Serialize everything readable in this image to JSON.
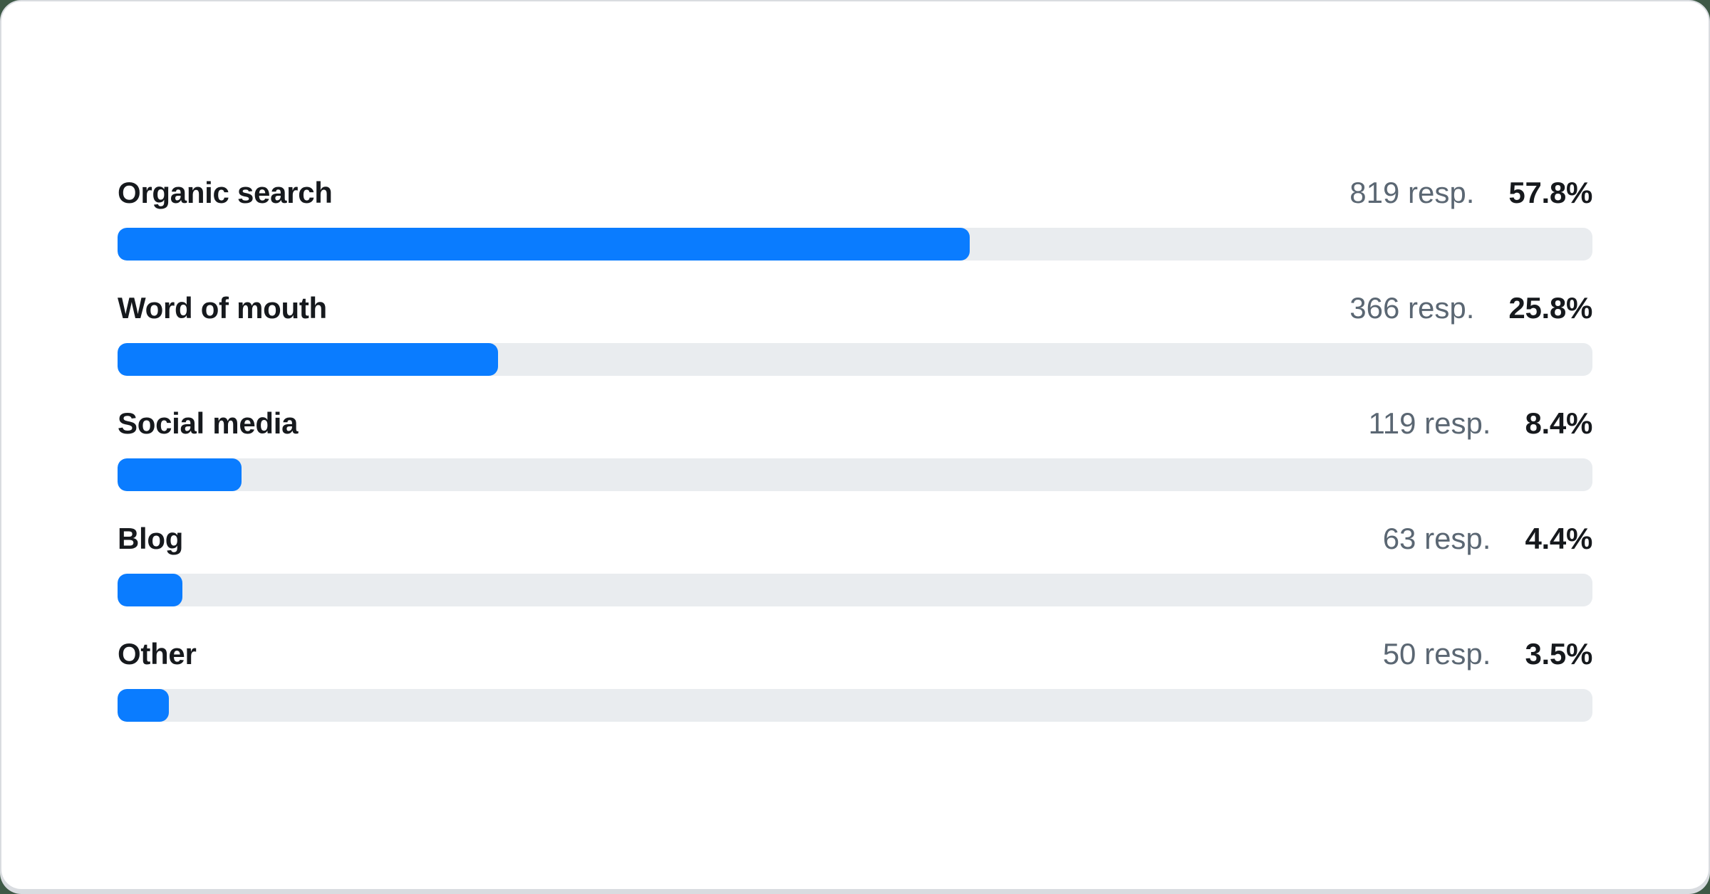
{
  "colors": {
    "page_background": "#3e5946",
    "card_background": "#ffffff",
    "card_border": "#d9dce0",
    "bar_fill": "#0a7cff",
    "bar_track": "#e9ecef",
    "label_text": "#16191d",
    "responses_text": "#5b6773",
    "percent_text": "#16191d"
  },
  "chart_data": {
    "type": "bar",
    "orientation": "horizontal",
    "title": "",
    "xlabel": "",
    "ylabel": "",
    "xlim": [
      0,
      100
    ],
    "grid": false,
    "legend": false,
    "categories": [
      "Organic search",
      "Word of mouth",
      "Social media",
      "Blog",
      "Other"
    ],
    "values": [
      57.8,
      25.8,
      8.4,
      4.4,
      3.5
    ],
    "responses": [
      819,
      366,
      119,
      63,
      50
    ],
    "rows": [
      {
        "label": "Organic search",
        "responses_label": "819 resp.",
        "percent_label": "57.8%",
        "percent_value": 57.8
      },
      {
        "label": "Word of mouth",
        "responses_label": "366 resp.",
        "percent_label": "25.8%",
        "percent_value": 25.8
      },
      {
        "label": "Social media",
        "responses_label": "119 resp.",
        "percent_label": "8.4%",
        "percent_value": 8.4
      },
      {
        "label": "Blog",
        "responses_label": "63 resp.",
        "percent_label": "4.4%",
        "percent_value": 4.4
      },
      {
        "label": "Other",
        "responses_label": "50 resp.",
        "percent_label": "3.5%",
        "percent_value": 3.5
      }
    ]
  }
}
